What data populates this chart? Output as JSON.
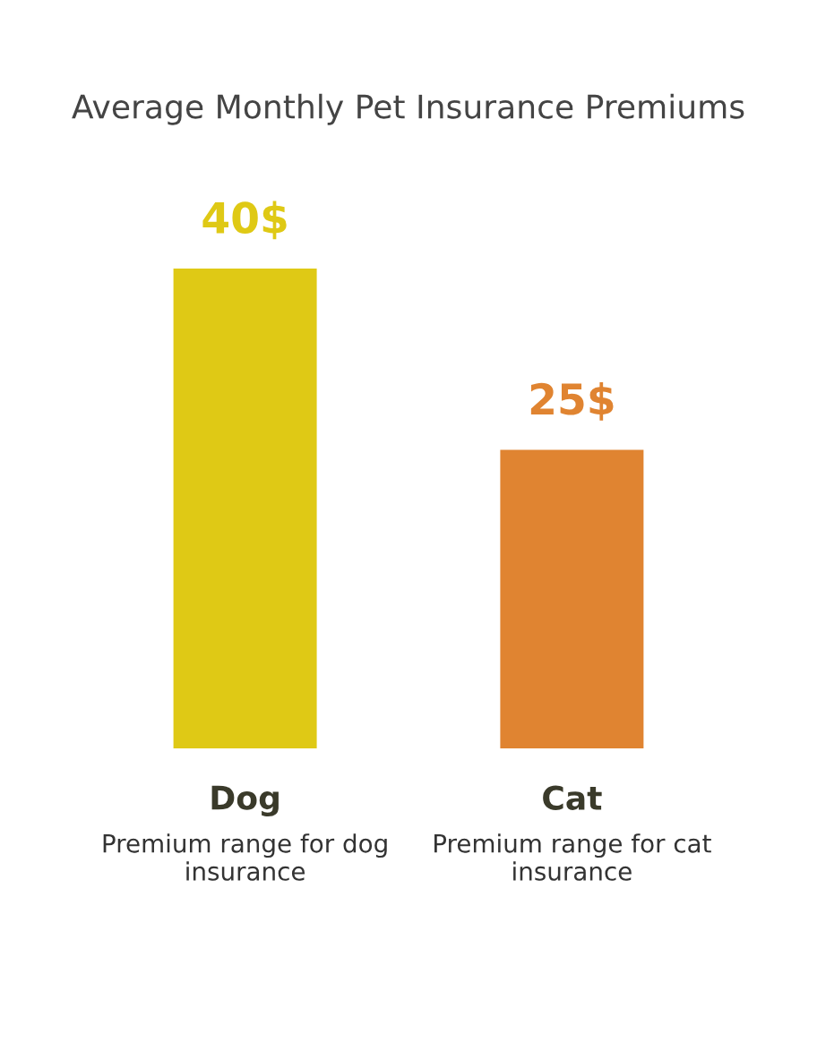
{
  "chart_data": {
    "type": "bar",
    "title": "Average Monthly Pet Insurance Premiums",
    "categories": [
      "Dog",
      "Cat"
    ],
    "series": [
      {
        "colors": [
          "#dfc915",
          "#e08431"
        ],
        "values": [
          40,
          25
        ],
        "value_labels": [
          "40$",
          "25$"
        ]
      }
    ],
    "annotations": [
      "Premium range for dog insurance",
      "Premium range for cat insurance"
    ],
    "grid": false,
    "legend": false,
    "tick_labels": "x"
  }
}
